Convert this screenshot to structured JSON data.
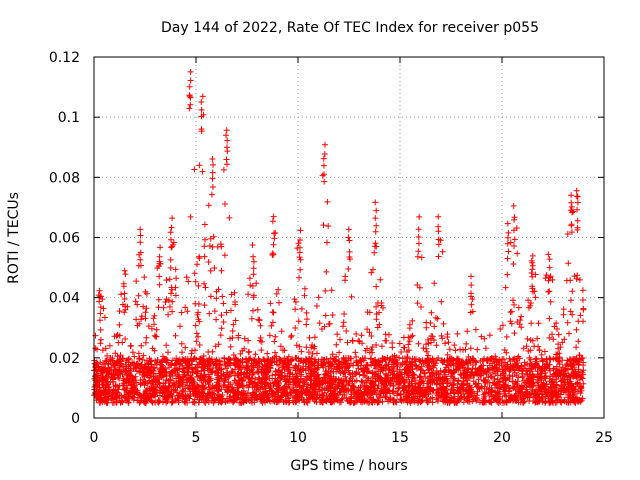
{
  "chart_data": {
    "type": "scatter",
    "title": "Day 144 of 2022, Rate Of TEC Index for receiver p055",
    "xlabel": "GPS time / hours",
    "ylabel": "ROTI / TECUs",
    "xlim": [
      0,
      25
    ],
    "ylim": [
      0,
      0.12
    ],
    "x_ticks": [
      0,
      5,
      10,
      15,
      20,
      25
    ],
    "y_ticks": [
      0,
      0.02,
      0.04,
      0.06,
      0.08,
      0.1,
      0.12
    ],
    "x_tick_labels": [
      "0",
      "5",
      "10",
      "15",
      "20",
      "25"
    ],
    "y_tick_labels": [
      "0",
      "0.02",
      "0.04",
      "0.06",
      "0.08",
      "0.1",
      "0.12"
    ],
    "grid": true,
    "marker": "+",
    "series": [
      {
        "name": "ROTI",
        "color": "#ff0000",
        "x_range": [
          0,
          24
        ],
        "typical_range": [
          0.005,
          0.02
        ],
        "peaks": [
          {
            "x": 0.3,
            "y": 0.043
          },
          {
            "x": 1.5,
            "y": 0.049
          },
          {
            "x": 2.3,
            "y": 0.064
          },
          {
            "x": 3.2,
            "y": 0.058
          },
          {
            "x": 3.8,
            "y": 0.067
          },
          {
            "x": 4.7,
            "y": 0.116
          },
          {
            "x": 5.3,
            "y": 0.108
          },
          {
            "x": 5.8,
            "y": 0.088
          },
          {
            "x": 6.5,
            "y": 0.097
          },
          {
            "x": 7.8,
            "y": 0.058
          },
          {
            "x": 8.8,
            "y": 0.068
          },
          {
            "x": 10.1,
            "y": 0.063
          },
          {
            "x": 11.3,
            "y": 0.092
          },
          {
            "x": 12.5,
            "y": 0.064
          },
          {
            "x": 13.8,
            "y": 0.072
          },
          {
            "x": 15.9,
            "y": 0.067
          },
          {
            "x": 16.9,
            "y": 0.068
          },
          {
            "x": 18.5,
            "y": 0.048
          },
          {
            "x": 20.3,
            "y": 0.066
          },
          {
            "x": 20.6,
            "y": 0.071
          },
          {
            "x": 21.5,
            "y": 0.055
          },
          {
            "x": 22.3,
            "y": 0.056
          },
          {
            "x": 23.4,
            "y": 0.076
          },
          {
            "x": 23.7,
            "y": 0.077
          }
        ]
      }
    ]
  }
}
